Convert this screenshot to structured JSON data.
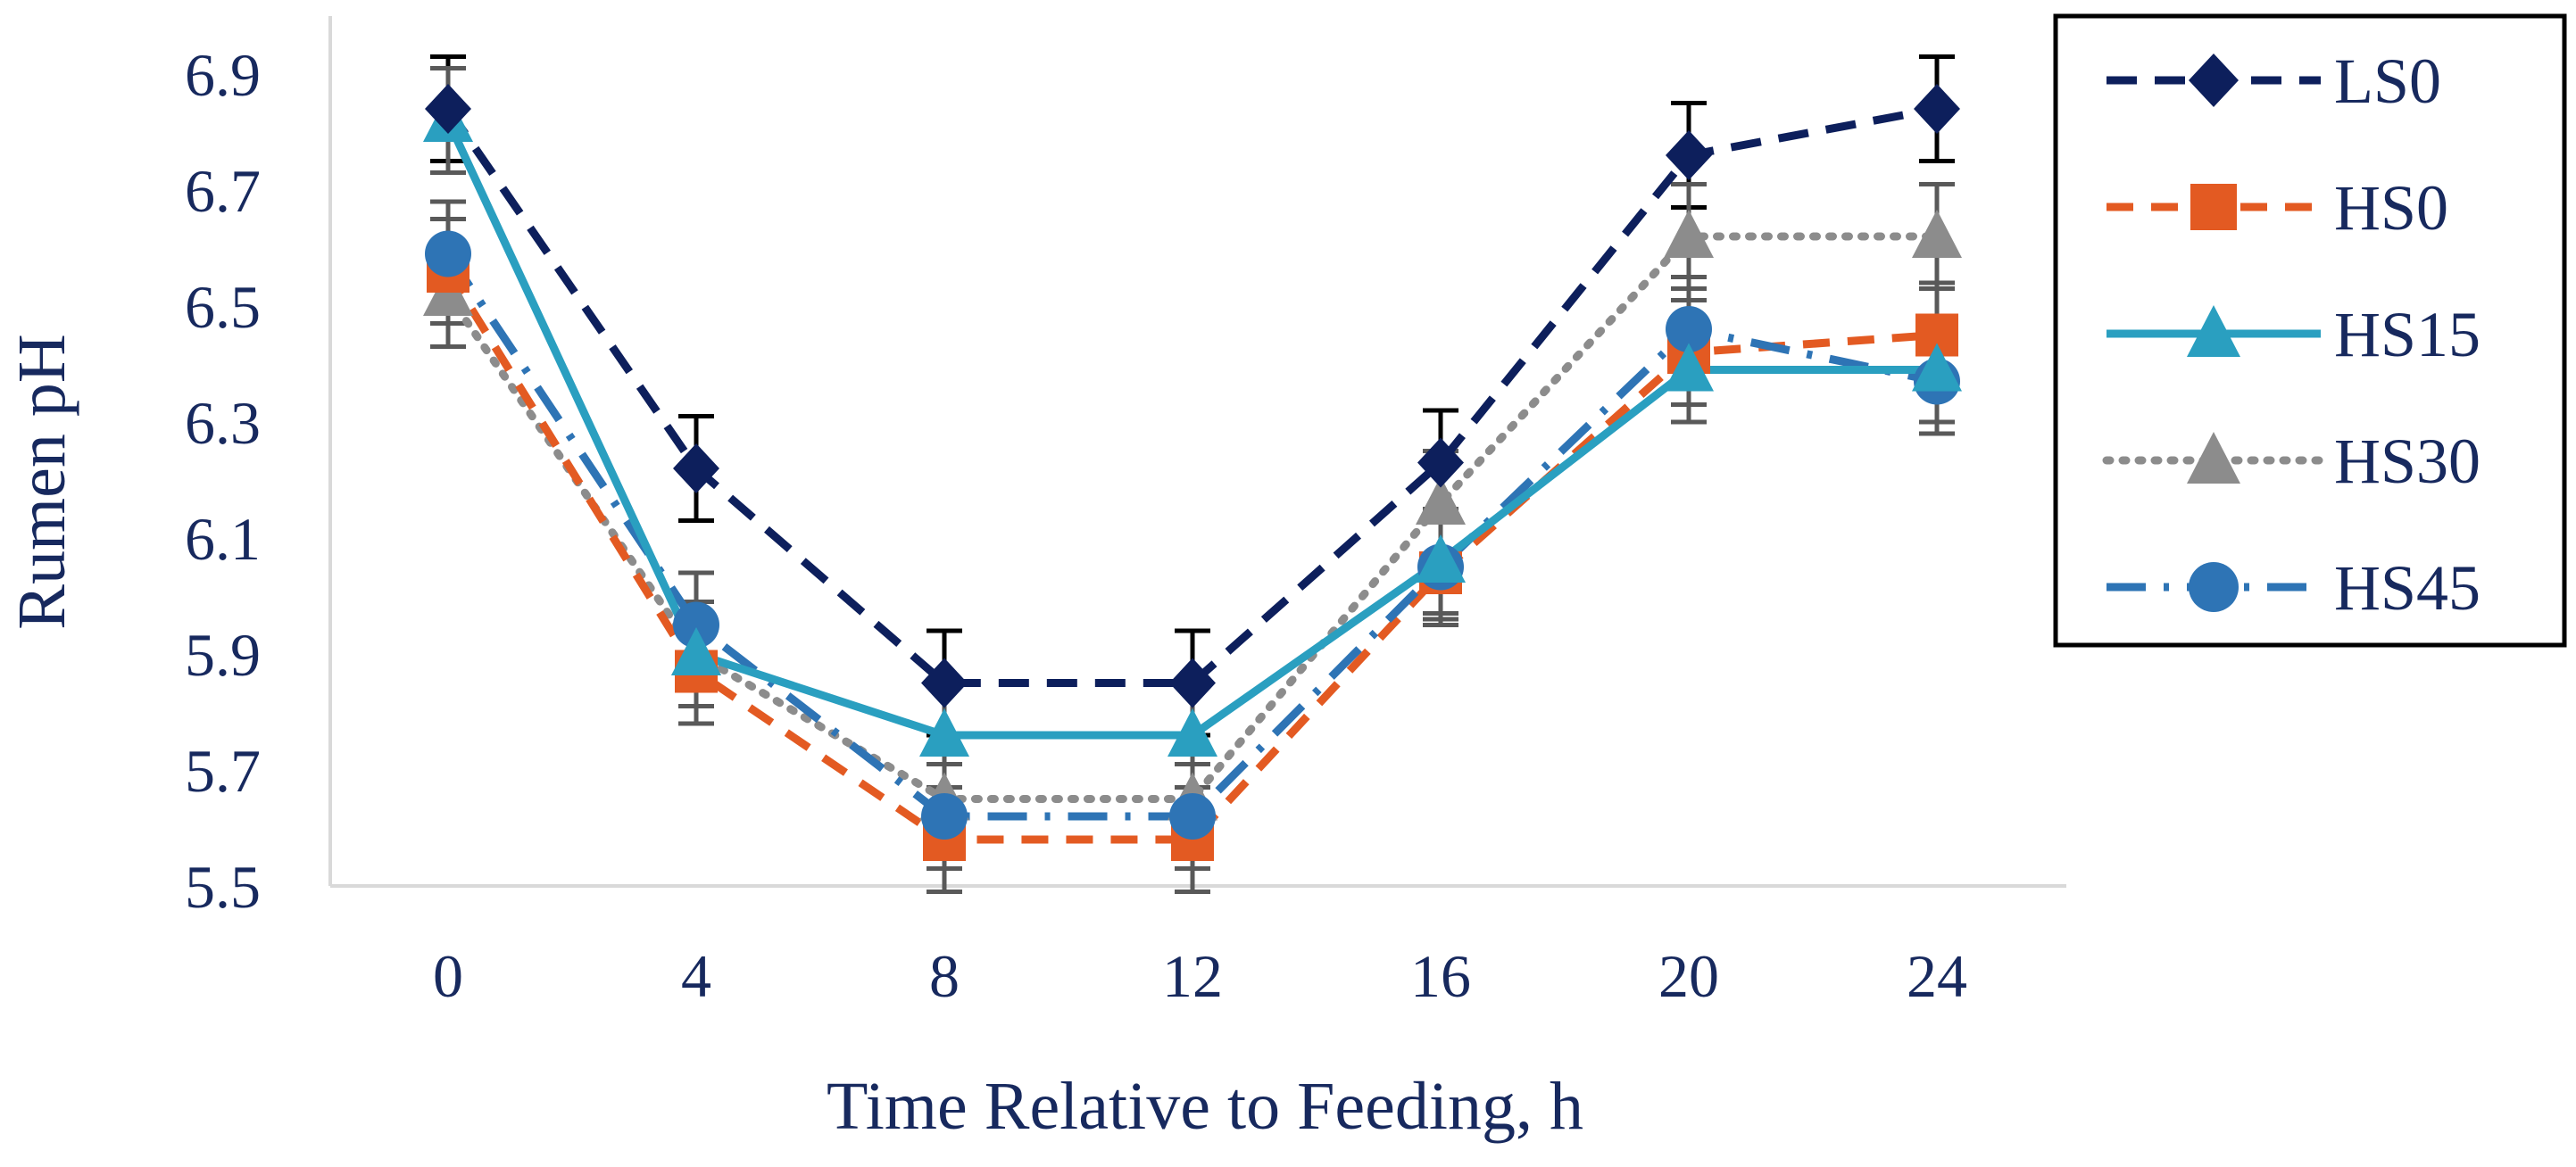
{
  "chart_data": {
    "type": "line",
    "title": "",
    "xlabel": "Time Relative to Feeding, h",
    "ylabel": "Rumen pH",
    "categories": [
      "0",
      "4",
      "8",
      "12",
      "16",
      "20",
      "24"
    ],
    "ylim": [
      5.5,
      7.0
    ],
    "yticks": [
      "5.5",
      "5.7",
      "5.9",
      "6.1",
      "6.3",
      "6.5",
      "6.7",
      "6.9"
    ],
    "ytick_values": [
      5.5,
      5.7,
      5.9,
      6.1,
      6.3,
      6.5,
      6.7,
      6.9
    ],
    "grid": false,
    "legend_position": "right",
    "series": [
      {
        "name": "LS0",
        "color": "#0d1f5c",
        "line": "dashed-long",
        "marker": "diamond",
        "values": [
          6.84,
          6.22,
          5.85,
          5.85,
          6.23,
          6.76,
          6.84
        ],
        "errors": [
          0.09,
          0.09,
          0.09,
          0.09,
          0.09,
          0.09,
          0.09
        ]
      },
      {
        "name": "HS0",
        "color": "#e35a22",
        "line": "dashed",
        "marker": "square",
        "values": [
          6.56,
          5.87,
          5.58,
          5.58,
          6.04,
          6.42,
          6.45
        ],
        "errors": [
          0.09,
          0.09,
          0.09,
          0.09,
          0.09,
          0.09,
          0.09
        ]
      },
      {
        "name": "HS15",
        "color": "#2a9fc0",
        "line": "solid",
        "marker": "triangle",
        "values": [
          6.82,
          5.9,
          5.76,
          5.76,
          6.06,
          6.39,
          6.39
        ],
        "errors": [
          0.09,
          0.09,
          0.09,
          0.09,
          0.09,
          0.09,
          0.09
        ]
      },
      {
        "name": "HS30",
        "color": "#8c8c8c",
        "line": "dotted",
        "marker": "triangle",
        "values": [
          6.52,
          5.9,
          5.65,
          5.65,
          6.16,
          6.62,
          6.62
        ],
        "errors": [
          0.09,
          0.09,
          0.09,
          0.09,
          0.09,
          0.09,
          0.09
        ]
      },
      {
        "name": "HS45",
        "color": "#2e74b5",
        "line": "dash-dot",
        "marker": "circle",
        "values": [
          6.59,
          5.95,
          5.62,
          5.62,
          6.05,
          6.46,
          6.37
        ],
        "errors": [
          0.09,
          0.09,
          0.09,
          0.09,
          0.09,
          0.09,
          0.09
        ]
      }
    ]
  }
}
